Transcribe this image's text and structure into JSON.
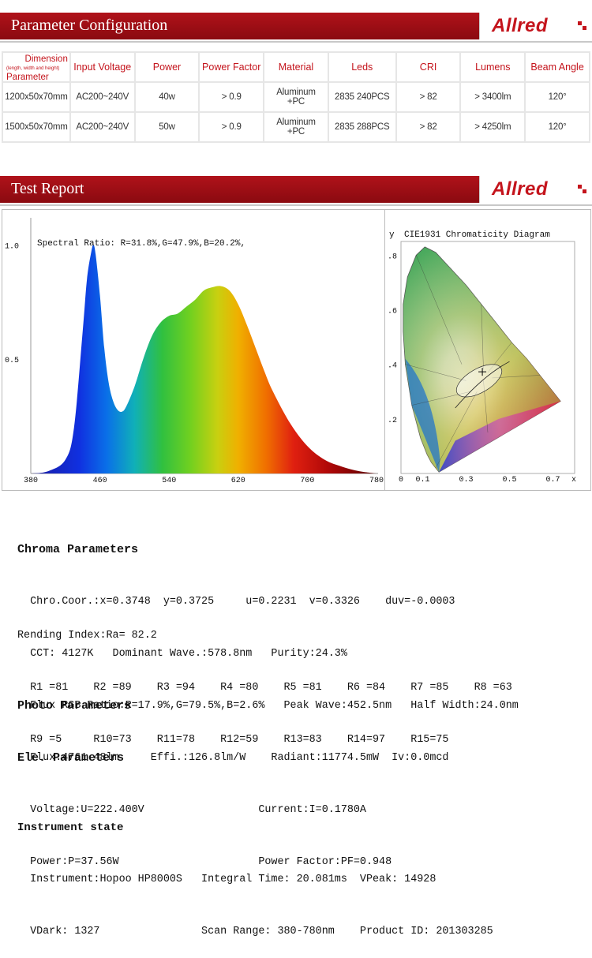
{
  "brand": {
    "logo": "Allred",
    "color": "#c4141c"
  },
  "section1": {
    "title": "Parameter Configuration"
  },
  "section2": {
    "title": "Test Report"
  },
  "table": {
    "head_dimension": "Dimension",
    "head_dimension_sub": "(length, width and height)",
    "head_parameter": "Parameter",
    "headers": [
      "Input Voltage",
      "Power",
      "Power Factor",
      "Material",
      "Leds",
      "CRI",
      "Lumens",
      "Beam Angle"
    ],
    "rows": [
      {
        "dimension": "1200x50x70mm",
        "voltage": "AC200~240V",
        "power": "40w",
        "pf": "> 0.9",
        "material1": "Aluminum",
        "material2": "+PC",
        "leds": "2835  240PCS",
        "cri": "> 82",
        "lumens": "> 3400lm",
        "beam": "120°"
      },
      {
        "dimension": "1500x50x70mm",
        "voltage": "AC200~240V",
        "power": "50w",
        "pf": "> 0.9",
        "material1": "Aluminum",
        "material2": "+PC",
        "leds": "2835  288PCS",
        "cri": "> 82",
        "lumens": "> 4250lm",
        "beam": "120°"
      }
    ]
  },
  "chart_data": [
    {
      "type": "area",
      "title": "Spectral Ratio:  R=31.8%,G=47.9%,B=20.2%,",
      "x_ticks": [
        "380",
        "460",
        "540",
        "620",
        "700",
        "780"
      ],
      "y_ticks": [
        "1.0",
        "0.5"
      ],
      "xlim": [
        380,
        780
      ],
      "ylim": [
        0,
        1.05
      ],
      "x": [
        380,
        400,
        420,
        430,
        440,
        445,
        450,
        452.5,
        455,
        460,
        465,
        470,
        475,
        480,
        485,
        490,
        500,
        510,
        520,
        530,
        540,
        550,
        560,
        570,
        580,
        590,
        600,
        610,
        620,
        630,
        640,
        650,
        660,
        680,
        700,
        720,
        740,
        760,
        780
      ],
      "y": [
        0.0,
        0.01,
        0.06,
        0.2,
        0.62,
        0.85,
        0.97,
        1.0,
        0.96,
        0.78,
        0.55,
        0.4,
        0.32,
        0.28,
        0.27,
        0.29,
        0.38,
        0.5,
        0.6,
        0.66,
        0.69,
        0.7,
        0.73,
        0.76,
        0.8,
        0.815,
        0.82,
        0.8,
        0.74,
        0.65,
        0.55,
        0.45,
        0.36,
        0.22,
        0.12,
        0.06,
        0.03,
        0.01,
        0.0
      ]
    },
    {
      "type": "scatter",
      "title": "CIE1931 Chromaticity Diagram",
      "xlabel": "x",
      "ylabel": "y",
      "x_ticks": [
        "0",
        "0.1",
        "0.3",
        "0.5",
        "0.7"
      ],
      "y_ticks": [
        ".8",
        ".6",
        ".4",
        ".2",
        "0"
      ],
      "xlim": [
        0,
        0.8
      ],
      "ylim": [
        0,
        0.85
      ],
      "point": {
        "x": 0.3748,
        "y": 0.3725
      }
    }
  ],
  "report": {
    "chroma_title": "Chroma Parameters",
    "chroma_l1": "  Chro.Coor.:x=0.3748  y=0.3725     u=0.2231  v=0.3326    duv=-0.0003",
    "chroma_l2": "  CCT: 4127K   Dominant Wave.:578.8nm   Purity:24.3%",
    "chroma_l3": "  Flux RGB Ratio:R=17.9%,G=79.5%,B=2.6%   Peak Wave:452.5nm   Half Width:24.0nm",
    "ra_title": "Rending Index:Ra= 82.2",
    "ra_l1": "  R1 =81    R2 =89    R3 =94    R4 =80    R5 =81    R6 =84    R7 =85    R8 =63",
    "ra_l2": "  R9 =5     R10=73    R11=78    R12=59    R13=83    R14=97    R15=75",
    "photo_title": "Photo Parameters",
    "photo_l1": "  Flux:4761.48lm     Effi.:126.8lm/W    Radiant:11774.5mW  Iv:0.0mcd",
    "ele_title": "Ele. Parameters",
    "ele_l1": "  Voltage:U=222.400V                  Current:I=0.1780A",
    "ele_l2": "  Power:P=37.56W                      Power Factor:PF=0.948",
    "inst_title": "Instrument state",
    "inst_l1": "  Instrument:Hopoo HP8000S   Integral Time: 20.081ms  VPeak: 14928",
    "inst_l2": "  VDark: 1327                Scan Range: 380-780nm    Product ID: 201303285"
  }
}
